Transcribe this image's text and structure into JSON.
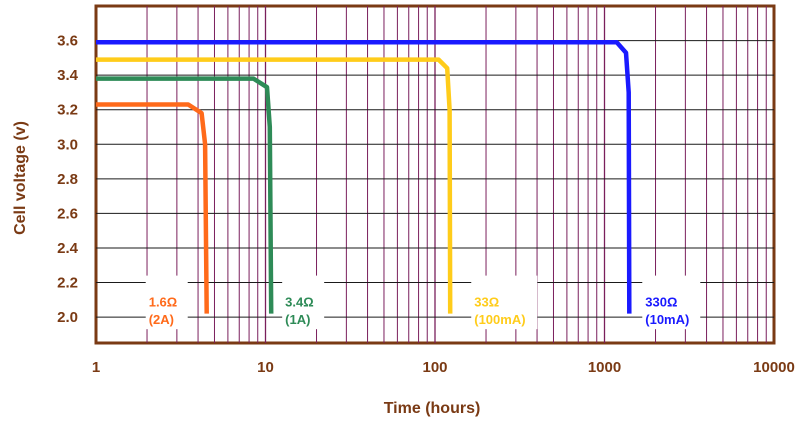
{
  "chart_data": {
    "type": "line",
    "xlabel": "Time (hours)",
    "ylabel": "Cell voltage (v)",
    "x_scale": "log",
    "xlim": [
      1,
      10000
    ],
    "ylim": [
      1.85,
      3.8
    ],
    "x_ticks": [
      "1",
      "10",
      "100",
      "1000",
      "10000"
    ],
    "y_ticks": [
      "2.0",
      "2.2",
      "2.4",
      "2.6",
      "2.8",
      "3.0",
      "3.2",
      "3.4",
      "3.6"
    ],
    "grid": true,
    "series": [
      {
        "load_label": "1.6Ω",
        "current_label": "(2A)",
        "color": "#ff6a1a",
        "points": [
          [
            1,
            3.23
          ],
          [
            3.5,
            3.23
          ],
          [
            4.2,
            3.18
          ],
          [
            4.4,
            3.0
          ],
          [
            4.5,
            2.02
          ]
        ]
      },
      {
        "load_label": "3.4Ω",
        "current_label": "(1A)",
        "color": "#2e8b57",
        "points": [
          [
            1,
            3.38
          ],
          [
            8.5,
            3.38
          ],
          [
            10.2,
            3.33
          ],
          [
            10.6,
            3.1
          ],
          [
            10.8,
            2.02
          ]
        ]
      },
      {
        "load_label": "33Ω",
        "current_label": "(100mA)",
        "color": "#ffcc1a",
        "points": [
          [
            1,
            3.49
          ],
          [
            105,
            3.49
          ],
          [
            118,
            3.44
          ],
          [
            122,
            3.2
          ],
          [
            123,
            2.02
          ]
        ]
      },
      {
        "load_label": "330Ω",
        "current_label": "(10mA)",
        "color": "#1a1aff",
        "points": [
          [
            1,
            3.59
          ],
          [
            1180,
            3.59
          ],
          [
            1340,
            3.53
          ],
          [
            1390,
            3.3
          ],
          [
            1400,
            2.02
          ]
        ]
      }
    ]
  }
}
